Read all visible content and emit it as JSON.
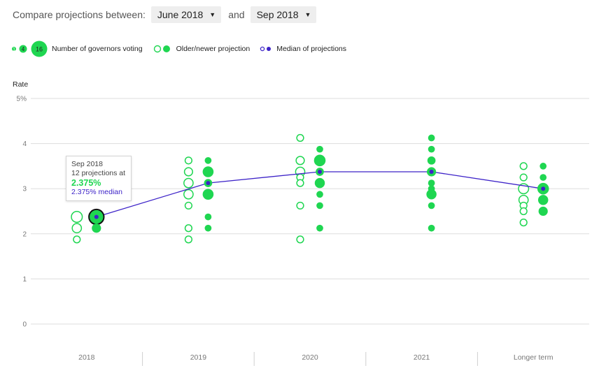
{
  "compare": {
    "label": "Compare projections between:",
    "from_value": "June 2018",
    "and_label": "and",
    "to_value": "Sep 2018"
  },
  "legend": {
    "size_small_1": "1",
    "size_small_2": "4",
    "size_big": "16",
    "voting_label": "Number of governors voting",
    "older_newer_label": "Older/newer projection",
    "median_label": "Median of projections"
  },
  "colors": {
    "green": "#1fd651",
    "median": "#3d23c8",
    "grid": "#dddddd"
  },
  "tooltip": {
    "title": "Sep 2018",
    "line2": "12 projections at",
    "value": "2.375%",
    "median": "2.375% median"
  },
  "chart_data": {
    "type": "scatter",
    "ylabel": "Rate",
    "ylim": [
      0,
      5
    ],
    "ytick_labels": [
      "0",
      "1",
      "2",
      "3",
      "4",
      "5%"
    ],
    "categories": [
      "2018",
      "2019",
      "2020",
      "2021",
      "Longer term"
    ],
    "series": [
      {
        "name": "June 2018",
        "style": "hollow",
        "points": [
          {
            "cat": "2018",
            "values": [
              {
                "y": 2.375,
                "n": 5
              },
              {
                "y": 2.125,
                "n": 3
              },
              {
                "y": 1.875,
                "n": 1
              }
            ]
          },
          {
            "cat": "2019",
            "values": [
              {
                "y": 3.625,
                "n": 1
              },
              {
                "y": 3.375,
                "n": 2
              },
              {
                "y": 3.125,
                "n": 3
              },
              {
                "y": 2.875,
                "n": 3
              },
              {
                "y": 2.625,
                "n": 1
              },
              {
                "y": 2.125,
                "n": 1
              },
              {
                "y": 1.875,
                "n": 1
              }
            ]
          },
          {
            "cat": "2020",
            "values": [
              {
                "y": 4.125,
                "n": 1
              },
              {
                "y": 3.625,
                "n": 2
              },
              {
                "y": 3.375,
                "n": 3
              },
              {
                "y": 3.25,
                "n": 1
              },
              {
                "y": 3.125,
                "n": 1
              },
              {
                "y": 2.625,
                "n": 1
              },
              {
                "y": 1.875,
                "n": 1
              }
            ]
          },
          {
            "cat": "Longer term",
            "values": [
              {
                "y": 3.5,
                "n": 1
              },
              {
                "y": 3.25,
                "n": 1
              },
              {
                "y": 3.0,
                "n": 4
              },
              {
                "y": 2.75,
                "n": 3
              },
              {
                "y": 2.625,
                "n": 1
              },
              {
                "y": 2.5,
                "n": 1
              },
              {
                "y": 2.25,
                "n": 1
              }
            ]
          }
        ],
        "medians": [
          2.375,
          3.125,
          3.375,
          3.0
        ]
      },
      {
        "name": "Sep 2018",
        "style": "filled",
        "points": [
          {
            "cat": "2018",
            "values": [
              {
                "y": 2.375,
                "n": 12
              },
              {
                "y": 2.125,
                "n": 3
              }
            ]
          },
          {
            "cat": "2019",
            "values": [
              {
                "y": 3.625,
                "n": 1
              },
              {
                "y": 3.375,
                "n": 5
              },
              {
                "y": 3.125,
                "n": 2
              },
              {
                "y": 2.875,
                "n": 5
              },
              {
                "y": 2.375,
                "n": 1
              },
              {
                "y": 2.125,
                "n": 1
              }
            ]
          },
          {
            "cat": "2020",
            "values": [
              {
                "y": 3.875,
                "n": 1
              },
              {
                "y": 3.625,
                "n": 6
              },
              {
                "y": 3.375,
                "n": 2
              },
              {
                "y": 3.125,
                "n": 4
              },
              {
                "y": 2.875,
                "n": 1
              },
              {
                "y": 2.625,
                "n": 1
              },
              {
                "y": 2.125,
                "n": 1
              }
            ]
          },
          {
            "cat": "2021",
            "values": [
              {
                "y": 4.125,
                "n": 1
              },
              {
                "y": 3.875,
                "n": 1
              },
              {
                "y": 3.625,
                "n": 2
              },
              {
                "y": 3.375,
                "n": 3
              },
              {
                "y": 3.125,
                "n": 1
              },
              {
                "y": 3.0,
                "n": 1
              },
              {
                "y": 2.875,
                "n": 4
              },
              {
                "y": 2.625,
                "n": 1
              },
              {
                "y": 2.125,
                "n": 1
              }
            ]
          },
          {
            "cat": "Longer term",
            "values": [
              {
                "y": 3.5,
                "n": 1
              },
              {
                "y": 3.25,
                "n": 1
              },
              {
                "y": 3.0,
                "n": 6
              },
              {
                "y": 2.75,
                "n": 4
              },
              {
                "y": 2.5,
                "n": 3
              }
            ]
          }
        ],
        "medians": [
          2.375,
          3.125,
          3.375,
          3.375,
          3.0
        ]
      }
    ],
    "highlighted": {
      "series": "Sep 2018",
      "cat": "2018",
      "y": 2.375
    }
  }
}
